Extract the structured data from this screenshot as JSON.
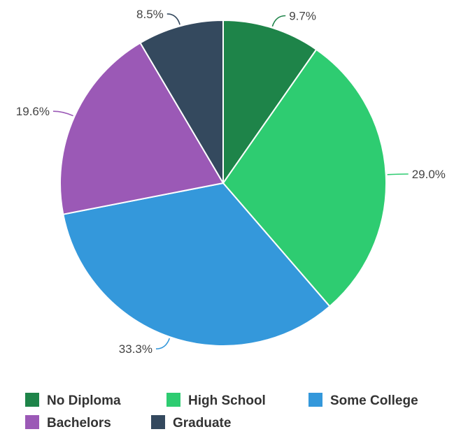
{
  "chart_data": {
    "type": "pie",
    "title": "",
    "series": [
      {
        "name": "No Diploma",
        "value": 9.7,
        "label": "9.7%",
        "color": "#1e8449"
      },
      {
        "name": "High School",
        "value": 29.0,
        "label": "29.0%",
        "color": "#2ecc71"
      },
      {
        "name": "Some College",
        "value": 33.3,
        "label": "33.3%",
        "color": "#3498db"
      },
      {
        "name": "Bachelors",
        "value": 19.6,
        "label": "19.6%",
        "color": "#9b59b6"
      },
      {
        "name": "Graduate",
        "value": 8.5,
        "label": "8.5%",
        "color": "#34495e"
      }
    ],
    "legend_position": "bottom",
    "start_angle": "12 o'clock, clockwise"
  }
}
